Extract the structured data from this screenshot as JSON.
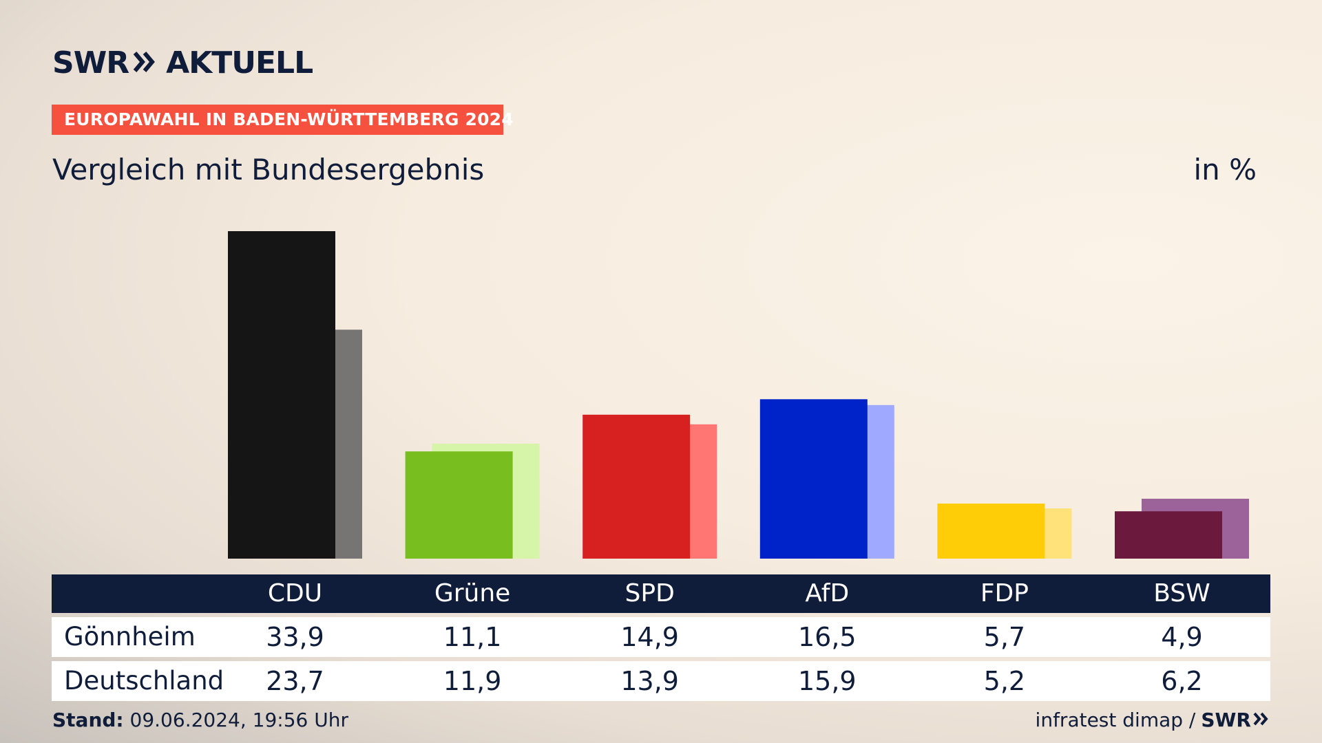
{
  "header": {
    "logo_brand": "SWR",
    "logo_product": "AKTUELL",
    "badge": "EUROPAWAHL IN BADEN-WÜRTTEMBERG 2024",
    "subtitle": "Vergleich mit Bundesergebnis",
    "unit": "in %"
  },
  "chart_data": {
    "type": "bar",
    "title": "Vergleich mit Bundesergebnis",
    "ylabel": "in %",
    "ylim": [
      0,
      33.9
    ],
    "grid": false,
    "categories": [
      "CDU",
      "Grüne",
      "SPD",
      "AfD",
      "FDP",
      "BSW"
    ],
    "series": [
      {
        "name": "Gönnheim",
        "values": [
          33.9,
          11.1,
          14.9,
          16.5,
          5.7,
          4.9
        ],
        "colors": [
          "#151515",
          "#79be1f",
          "#d72020",
          "#0022c9",
          "#ffcc08",
          "#6b1a3e"
        ]
      },
      {
        "name": "Deutschland",
        "values": [
          23.7,
          11.9,
          13.9,
          15.9,
          5.2,
          6.2
        ],
        "colors": [
          "#767574",
          "#d6f5a9",
          "#ff7672",
          "#9ea9ff",
          "#ffe27a",
          "#9b6399"
        ]
      }
    ]
  },
  "table": {
    "headers": [
      "CDU",
      "Grüne",
      "SPD",
      "AfD",
      "FDP",
      "BSW"
    ],
    "rows": [
      {
        "label": "Gönnheim",
        "values": [
          "33,9",
          "11,1",
          "14,9",
          "16,5",
          "5,7",
          "4,9"
        ]
      },
      {
        "label": "Deutschland",
        "values": [
          "23,7",
          "11,9",
          "13,9",
          "15,9",
          "5,2",
          "6,2"
        ]
      }
    ]
  },
  "footer": {
    "stand_label": "Stand:",
    "stand_value": "09.06.2024, 19:56 Uhr",
    "source": "infratest dimap /",
    "source_brand": "SWR"
  },
  "colors": {
    "navy": "#0f1c3a",
    "badge": "#f6513e"
  }
}
